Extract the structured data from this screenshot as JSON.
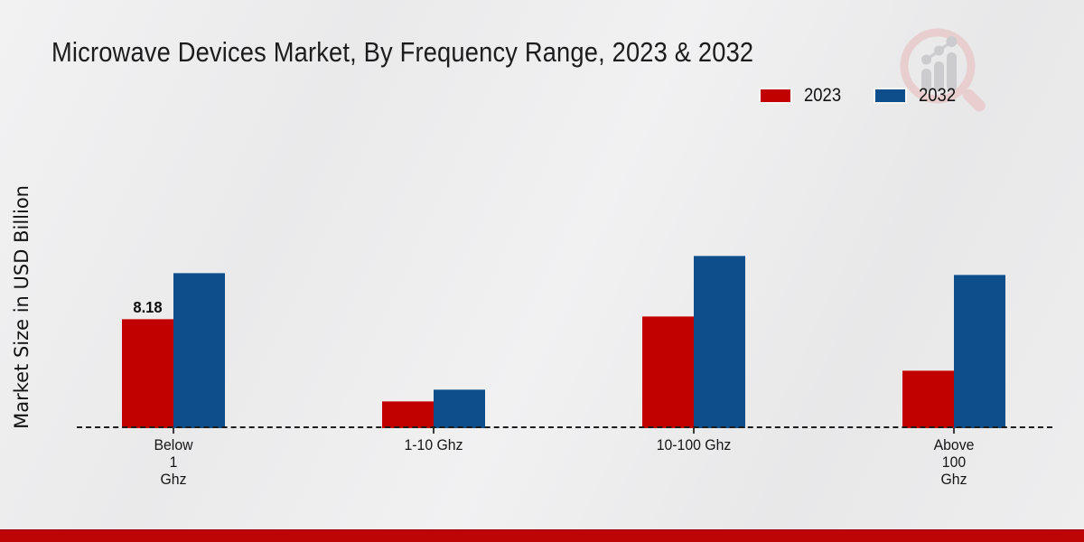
{
  "page": {
    "title": "Microwave Devices Market, By Frequency Range, 2023 & 2032",
    "y_axis_label": "Market Size in USD Billion"
  },
  "legend": {
    "items": [
      {
        "label": "2023",
        "color": "#c10000"
      },
      {
        "label": "2032",
        "color": "#0d4e8b"
      }
    ]
  },
  "colors": {
    "series_2023": "#c10000",
    "series_2032": "#0d4e8b",
    "bottom_band": "#bd0505",
    "background": "#ececed",
    "axis": "#1c1c1c"
  },
  "watermark": {
    "name": "magnifier-bar-chart-logo"
  },
  "chart_data": {
    "type": "bar",
    "title": "Microwave Devices Market, By Frequency Range, 2023 & 2032",
    "xlabel": "",
    "ylabel": "Market Size in USD Billion",
    "categories": [
      "Below\n1\nGhz",
      "1-10 Ghz",
      "10-100 Ghz",
      "Above\n100\nGhz"
    ],
    "series": [
      {
        "name": "2023",
        "color": "#c10000",
        "values": [
          8.18,
          2.0,
          8.4,
          4.3
        ]
      },
      {
        "name": "2032",
        "color": "#0d4e8b",
        "values": [
          11.6,
          2.9,
          12.9,
          11.5
        ]
      }
    ],
    "data_labels": [
      {
        "series": "2023",
        "category_index": 0,
        "text": "8.18"
      }
    ],
    "ylim": [
      0,
      14
    ],
    "grid": false,
    "baseline_style": "dashed",
    "legend_position": "top-right"
  }
}
